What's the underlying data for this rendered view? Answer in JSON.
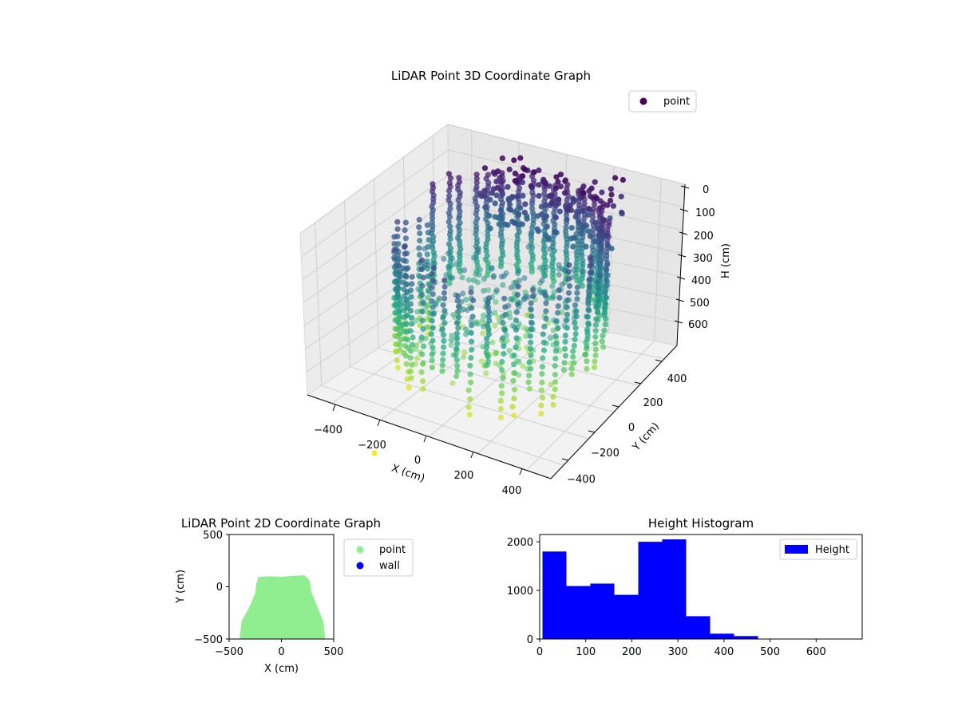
{
  "chart_data": [
    {
      "type": "scatter3d",
      "title": "LiDAR Point 3D Coordinate Graph",
      "xlabel": "X (cm)",
      "ylabel": "Y (cm)",
      "zlabel": "H (cm)",
      "xlim": [
        -500,
        500
      ],
      "ylim": [
        -500,
        500
      ],
      "zlim": [
        0,
        700
      ],
      "z_inverted": true,
      "x_ticks": [
        "−400",
        "−200",
        "0",
        "200",
        "400"
      ],
      "y_ticks": [
        "−400",
        "−200",
        "0",
        "200",
        "400"
      ],
      "z_ticks": [
        "0",
        "100",
        "200",
        "300",
        "400",
        "500",
        "600"
      ],
      "colormap": "viridis",
      "legend": [
        "point"
      ],
      "legend_position": "upper right",
      "grid": true
    },
    {
      "type": "scatter",
      "title": "LiDAR Point 2D Coordinate Graph",
      "xlabel": "X (cm)",
      "ylabel": "Y (cm)",
      "xlim": [
        -500,
        500
      ],
      "ylim": [
        -500,
        500
      ],
      "x_ticks": [
        "−500",
        "0",
        "500"
      ],
      "y_ticks": [
        "500",
        "0",
        "−500"
      ],
      "series": [
        {
          "name": "point",
          "color": "#90ee90"
        },
        {
          "name": "wall",
          "color": "#0000ff"
        }
      ],
      "legend_position": "outside right"
    },
    {
      "type": "bar",
      "title": "Height Histogram",
      "xlim": [
        0,
        700
      ],
      "ylim": [
        0,
        2150
      ],
      "x_ticks": [
        "0",
        "100",
        "200",
        "300",
        "400",
        "500",
        "600"
      ],
      "y_ticks": [
        "0",
        "1000",
        "2000"
      ],
      "bins": [
        {
          "x0": 0,
          "x1": 52,
          "count": 1800
        },
        {
          "x0": 52,
          "x1": 104,
          "count": 1090
        },
        {
          "x0": 104,
          "x1": 156,
          "count": 1140
        },
        {
          "x0": 156,
          "x1": 208,
          "count": 910
        },
        {
          "x0": 208,
          "x1": 260,
          "count": 2000
        },
        {
          "x0": 260,
          "x1": 312,
          "count": 2050
        },
        {
          "x0": 312,
          "x1": 364,
          "count": 470
        },
        {
          "x0": 364,
          "x1": 416,
          "count": 110
        },
        {
          "x0": 416,
          "x1": 468,
          "count": 60
        }
      ],
      "color": "#0000ff",
      "legend": [
        "Height"
      ],
      "legend_position": "upper right"
    }
  ]
}
